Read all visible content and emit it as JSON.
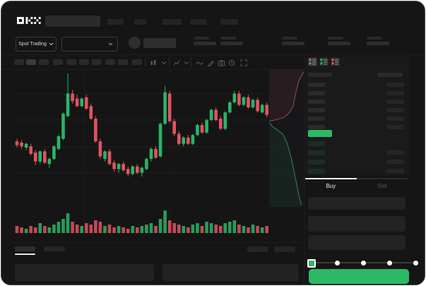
{
  "brand": {
    "logo_text": "OKX"
  },
  "header": {
    "search_placeholder": ""
  },
  "trade_header": {
    "market_selector": "Spot Trading"
  },
  "toolbar": {
    "icons": [
      "candle-interval-icon",
      "chevron-down-icon",
      "chart-type-icon",
      "chevron-down-icon",
      "indicator-wave-icon",
      "draw-pencil-icon",
      "camera-icon",
      "history-icon",
      "fullscreen-icon"
    ],
    "timeframe_slots": 10
  },
  "order_book": {
    "view_icons": [
      "book-combined-icon",
      "book-bids-icon",
      "book-asks-icon"
    ],
    "ask_rows": 6,
    "bid_rows": 4,
    "last_price_direction": "up"
  },
  "trade_panel": {
    "buy_tab": "Buy",
    "sell_tab": "Sell",
    "slider_steps": 5,
    "slider_value_index": 0,
    "submit_button_label": ""
  },
  "colors": {
    "up": "#2bb467",
    "down": "#e25360",
    "accent_green": "#2db964",
    "background": "#151516"
  },
  "chart_data": {
    "type": "candlestick",
    "title": "",
    "xlabel": "",
    "ylabel": "",
    "grid": true,
    "candles_ohlc": [
      [
        119,
        120,
        116.5,
        117.5
      ],
      [
        118.5,
        119.5,
        116,
        117
      ],
      [
        116.5,
        118.5,
        115.5,
        118
      ],
      [
        117,
        118,
        113.5,
        114
      ],
      [
        114.5,
        115.5,
        109.5,
        111
      ],
      [
        111,
        115.5,
        110,
        115
      ],
      [
        115,
        116,
        110,
        110.5
      ],
      [
        110,
        112.5,
        108.5,
        112
      ],
      [
        112,
        117.5,
        111.5,
        117
      ],
      [
        116,
        121.5,
        115.5,
        121
      ],
      [
        120,
        130.5,
        119.5,
        130
      ],
      [
        129,
        146,
        128.5,
        138
      ],
      [
        138,
        139.5,
        134,
        135
      ],
      [
        136,
        137.5,
        132.5,
        133
      ],
      [
        133,
        136.5,
        132.5,
        136
      ],
      [
        136.5,
        137.5,
        131.5,
        132
      ],
      [
        133,
        134,
        127.5,
        128
      ],
      [
        128,
        129,
        118.5,
        119
      ],
      [
        119,
        120,
        112,
        113
      ],
      [
        112,
        115.5,
        111,
        115
      ],
      [
        115,
        116,
        109.5,
        110
      ],
      [
        110.5,
        111.5,
        107,
        108
      ],
      [
        108,
        110.5,
        106.5,
        110
      ],
      [
        110,
        111,
        107,
        107.5
      ],
      [
        108,
        109,
        105,
        106
      ],
      [
        106,
        109.5,
        105.5,
        109
      ],
      [
        109,
        110,
        106,
        106.5
      ],
      [
        106.5,
        109,
        105,
        108.5
      ],
      [
        108,
        112.5,
        107.5,
        112
      ],
      [
        112,
        116.5,
        111,
        116
      ],
      [
        116,
        117,
        112,
        112.5
      ],
      [
        113,
        126.5,
        112.5,
        126
      ],
      [
        126,
        141,
        125.5,
        138.5
      ],
      [
        138,
        139,
        126.5,
        127
      ],
      [
        127,
        128,
        121,
        122
      ],
      [
        122,
        123,
        117.5,
        118
      ],
      [
        118,
        121,
        117,
        120.5
      ],
      [
        120.5,
        121.5,
        117.5,
        118
      ],
      [
        118,
        122,
        117.5,
        121.5
      ],
      [
        121.5,
        126,
        121,
        125.5
      ],
      [
        125.5,
        126.5,
        122,
        122.5
      ],
      [
        122.5,
        128,
        122,
        127.5
      ],
      [
        127.5,
        132,
        127,
        131.5
      ],
      [
        131.5,
        132.5,
        127,
        127.5
      ],
      [
        128,
        129,
        123.5,
        124
      ],
      [
        124,
        131,
        123.5,
        130.5
      ],
      [
        130.5,
        135,
        130,
        134.5
      ],
      [
        134.5,
        139,
        134,
        138
      ],
      [
        138,
        139,
        133,
        133.5
      ],
      [
        133.5,
        137,
        133,
        136.5
      ],
      [
        136.5,
        137.5,
        132,
        132.5
      ],
      [
        132.5,
        136,
        132,
        135.5
      ],
      [
        135.5,
        136.5,
        130.5,
        131
      ],
      [
        130.5,
        134,
        130,
        133.5
      ],
      [
        133.5,
        134.5,
        128.5,
        129.5
      ]
    ],
    "volume": [
      5,
      4,
      3,
      5,
      4,
      7,
      5,
      4,
      6,
      8,
      10,
      14,
      8,
      6,
      5,
      7,
      6,
      9,
      8,
      5,
      6,
      4,
      5,
      4,
      3,
      5,
      4,
      5,
      6,
      7,
      5,
      10,
      16,
      9,
      7,
      6,
      5,
      4,
      6,
      7,
      5,
      8,
      7,
      6,
      5,
      7,
      8,
      9,
      6,
      5,
      4,
      6,
      5,
      4,
      5
    ],
    "depth": {
      "asks": [
        [
          1,
          0.02
        ],
        [
          0.86,
          0.09
        ],
        [
          0.78,
          0.17
        ],
        [
          0.7,
          0.27
        ],
        [
          0.58,
          0.32
        ],
        [
          0.44,
          0.35
        ],
        [
          0.24,
          0.365
        ],
        [
          0.06,
          0.375
        ],
        [
          0.02,
          0.38
        ]
      ],
      "bids": [
        [
          0.02,
          0.39
        ],
        [
          0.12,
          0.42
        ],
        [
          0.24,
          0.44
        ],
        [
          0.4,
          0.47
        ],
        [
          0.52,
          0.53
        ],
        [
          0.6,
          0.6
        ],
        [
          0.68,
          0.68
        ],
        [
          0.76,
          0.78
        ],
        [
          0.84,
          0.88
        ],
        [
          0.9,
          0.95
        ],
        [
          0.94,
          0.985
        ]
      ]
    }
  }
}
